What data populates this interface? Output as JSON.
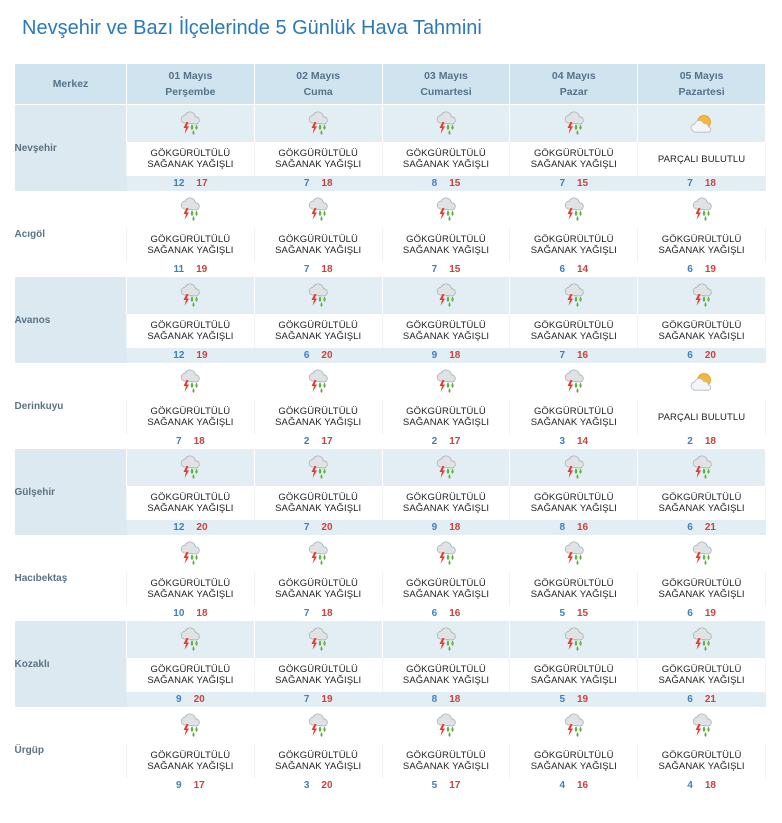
{
  "title": "Nevşehir ve Bazı İlçelerinde 5 Günlük Hava Tahmini",
  "header": {
    "corner": "Merkez",
    "days": [
      {
        "date": "01 Mayıs",
        "weekday": "Perşembe"
      },
      {
        "date": "02 Mayıs",
        "weekday": "Cuma"
      },
      {
        "date": "03 Mayıs",
        "weekday": "Cumartesi"
      },
      {
        "date": "04 Mayıs",
        "weekday": "Pazar"
      },
      {
        "date": "05 Mayıs",
        "weekday": "Pazartesi"
      }
    ]
  },
  "labels": {
    "storm_l1": "GÖKGÜRÜLTÜLÜ",
    "storm_l2": "SAĞANAK YAĞIŞLI",
    "partly": "PARÇALI BULUTLU"
  },
  "icons": {
    "storm": "thunderstorm-rain-icon",
    "partly": "partly-cloudy-icon"
  },
  "colors": {
    "min_temp": "#3f7fbf",
    "max_temp": "#c9423b",
    "title": "#2a7ab8",
    "header_bg": "#cfe4ef"
  },
  "rows": [
    {
      "name": "Nevşehir",
      "days": [
        {
          "cond": "storm",
          "min": "12",
          "max": "17"
        },
        {
          "cond": "storm",
          "min": "7",
          "max": "18"
        },
        {
          "cond": "storm",
          "min": "8",
          "max": "15"
        },
        {
          "cond": "storm",
          "min": "7",
          "max": "15"
        },
        {
          "cond": "partly",
          "min": "7",
          "max": "18"
        }
      ]
    },
    {
      "name": "Acıgöl",
      "days": [
        {
          "cond": "storm",
          "min": "11",
          "max": "19"
        },
        {
          "cond": "storm",
          "min": "7",
          "max": "18"
        },
        {
          "cond": "storm",
          "min": "7",
          "max": "15"
        },
        {
          "cond": "storm",
          "min": "6",
          "max": "14"
        },
        {
          "cond": "storm",
          "min": "6",
          "max": "19"
        }
      ]
    },
    {
      "name": "Avanos",
      "days": [
        {
          "cond": "storm",
          "min": "12",
          "max": "19"
        },
        {
          "cond": "storm",
          "min": "6",
          "max": "20"
        },
        {
          "cond": "storm",
          "min": "9",
          "max": "18"
        },
        {
          "cond": "storm",
          "min": "7",
          "max": "16"
        },
        {
          "cond": "storm",
          "min": "6",
          "max": "20"
        }
      ]
    },
    {
      "name": "Derinkuyu",
      "days": [
        {
          "cond": "storm",
          "min": "7",
          "max": "18"
        },
        {
          "cond": "storm",
          "min": "2",
          "max": "17"
        },
        {
          "cond": "storm",
          "min": "2",
          "max": "17"
        },
        {
          "cond": "storm",
          "min": "3",
          "max": "14"
        },
        {
          "cond": "partly",
          "min": "2",
          "max": "18"
        }
      ]
    },
    {
      "name": "Gülşehir",
      "days": [
        {
          "cond": "storm",
          "min": "12",
          "max": "20"
        },
        {
          "cond": "storm",
          "min": "7",
          "max": "20"
        },
        {
          "cond": "storm",
          "min": "9",
          "max": "18"
        },
        {
          "cond": "storm",
          "min": "8",
          "max": "16"
        },
        {
          "cond": "storm",
          "min": "6",
          "max": "21"
        }
      ]
    },
    {
      "name": "Hacıbektaş",
      "days": [
        {
          "cond": "storm",
          "min": "10",
          "max": "18"
        },
        {
          "cond": "storm",
          "min": "7",
          "max": "18"
        },
        {
          "cond": "storm",
          "min": "6",
          "max": "16"
        },
        {
          "cond": "storm",
          "min": "5",
          "max": "15"
        },
        {
          "cond": "storm",
          "min": "6",
          "max": "19"
        }
      ]
    },
    {
      "name": "Kozaklı",
      "days": [
        {
          "cond": "storm",
          "min": "9",
          "max": "20"
        },
        {
          "cond": "storm",
          "min": "7",
          "max": "19"
        },
        {
          "cond": "storm",
          "min": "8",
          "max": "18"
        },
        {
          "cond": "storm",
          "min": "5",
          "max": "19"
        },
        {
          "cond": "storm",
          "min": "6",
          "max": "21"
        }
      ]
    },
    {
      "name": "Ürgüp",
      "days": [
        {
          "cond": "storm",
          "min": "9",
          "max": "17"
        },
        {
          "cond": "storm",
          "min": "3",
          "max": "20"
        },
        {
          "cond": "storm",
          "min": "5",
          "max": "17"
        },
        {
          "cond": "storm",
          "min": "4",
          "max": "16"
        },
        {
          "cond": "storm",
          "min": "4",
          "max": "18"
        }
      ]
    }
  ]
}
